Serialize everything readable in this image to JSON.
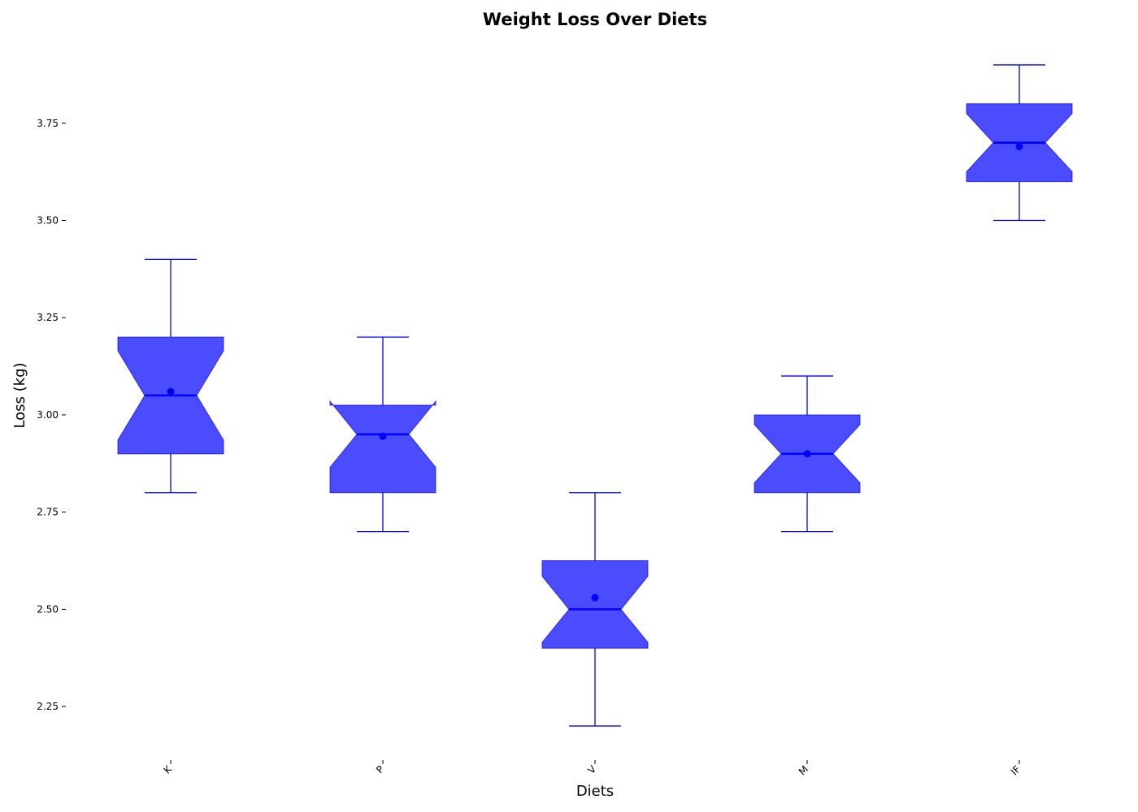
{
  "chart_data": {
    "type": "box",
    "title": "Weight Loss Over Diets",
    "xlabel": "Diets",
    "ylabel": "Loss (kg)",
    "categories": [
      "K",
      "P",
      "V",
      "M",
      "IF"
    ],
    "boxes": [
      {
        "category": "K",
        "whisker_low": 2.8,
        "q1": 2.9,
        "median": 3.05,
        "q3": 3.2,
        "whisker_high": 3.4,
        "mean": 3.06,
        "notch_low": 2.935,
        "notch_high": 3.165
      },
      {
        "category": "P",
        "whisker_low": 2.7,
        "q1": 2.8,
        "median": 2.95,
        "q3": 3.025,
        "whisker_high": 3.2,
        "mean": 2.945,
        "notch_low": 2.865,
        "notch_high": 3.035
      },
      {
        "category": "V",
        "whisker_low": 2.2,
        "q1": 2.4,
        "median": 2.5,
        "q3": 2.625,
        "whisker_high": 2.8,
        "mean": 2.53,
        "notch_low": 2.415,
        "notch_high": 2.585
      },
      {
        "category": "M",
        "whisker_low": 2.7,
        "q1": 2.8,
        "median": 2.9,
        "q3": 3.0,
        "whisker_high": 3.1,
        "mean": 2.9,
        "notch_low": 2.825,
        "notch_high": 2.975
      },
      {
        "category": "IF",
        "whisker_low": 3.5,
        "q1": 3.6,
        "median": 3.7,
        "q3": 3.8,
        "whisker_high": 3.9,
        "mean": 3.69,
        "notch_low": 3.625,
        "notch_high": 3.775
      }
    ],
    "y_ticks": [
      2.25,
      2.5,
      2.75,
      3.0,
      3.25,
      3.5,
      3.75
    ],
    "y_tick_labels": [
      "2.25",
      "2.50",
      "2.75",
      "3.00",
      "3.25",
      "3.50",
      "3.75"
    ],
    "ylim": [
      2.125,
      3.975
    ],
    "grid": false,
    "legend": "none",
    "colors": {
      "box_fill": "#0000ff",
      "box_fill_opacity": 0.7,
      "line": "#0000ff",
      "mean": "#0000ff"
    }
  }
}
